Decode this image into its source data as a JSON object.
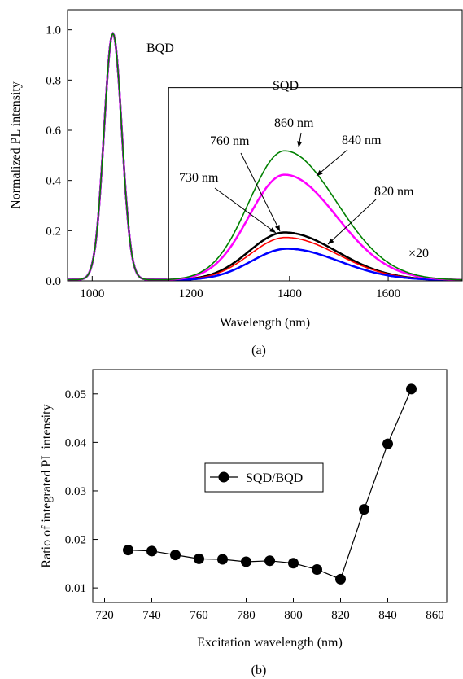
{
  "chart_data": [
    {
      "type": "line",
      "panel_label": "(a)",
      "xlabel": "Wavelength (nm)",
      "ylabel": "Normalized PL intensity",
      "xlim": [
        950,
        1750
      ],
      "ylim": [
        0,
        1.08
      ],
      "x_ticks": [
        1000,
        1200,
        1400,
        1600
      ],
      "y_ticks": [
        0.0,
        0.2,
        0.4,
        0.6,
        0.8,
        1.0
      ],
      "grid": false,
      "legend": "none",
      "annotations": {
        "bqd": "BQD",
        "sqd": "SQD",
        "scale": "×20",
        "labels": [
          "860 nm",
          "840 nm",
          "760 nm",
          "730 nm",
          "820 nm"
        ]
      },
      "inset_box_x_start": 1155,
      "inset_box_y_top": 0.77,
      "colors": {
        "730nm": "#000000",
        "760nm": "#ff0000",
        "820nm": "#0000ff",
        "840nm": "#ff00ff",
        "860nm": "#008000"
      },
      "bqd_peak": {
        "center": 1042,
        "width": 18,
        "amplitude": 1.0
      },
      "series": [
        {
          "id": "730nm",
          "sqd_peak_x": 1390,
          "sqd_peak_y": 0.19
        },
        {
          "id": "760nm",
          "sqd_peak_x": 1392,
          "sqd_peak_y": 0.17
        },
        {
          "id": "820nm",
          "sqd_peak_x": 1395,
          "sqd_peak_y": 0.125
        },
        {
          "id": "840nm",
          "sqd_peak_x": 1390,
          "sqd_peak_y": 0.42
        },
        {
          "id": "860nm",
          "sqd_peak_x": 1390,
          "sqd_peak_y": 0.515
        }
      ]
    },
    {
      "type": "line",
      "panel_label": "(b)",
      "xlabel": "Excitation wavelength (nm)",
      "ylabel": "Ratio of integrated PL intensity",
      "xlim": [
        715,
        865
      ],
      "ylim": [
        0.007,
        0.055
      ],
      "x_ticks": [
        720,
        740,
        760,
        780,
        800,
        820,
        840,
        860
      ],
      "y_ticks": [
        0.01,
        0.02,
        0.03,
        0.04,
        0.05
      ],
      "grid": false,
      "legend": "center-left",
      "series": [
        {
          "name": "SQD/BQD",
          "x": [
            730,
            740,
            750,
            760,
            770,
            780,
            790,
            800,
            810,
            820,
            830,
            840,
            850
          ],
          "y": [
            0.0178,
            0.0176,
            0.0168,
            0.016,
            0.0159,
            0.0154,
            0.0156,
            0.0151,
            0.0138,
            0.0118,
            0.0262,
            0.0397,
            0.051
          ]
        }
      ]
    }
  ]
}
